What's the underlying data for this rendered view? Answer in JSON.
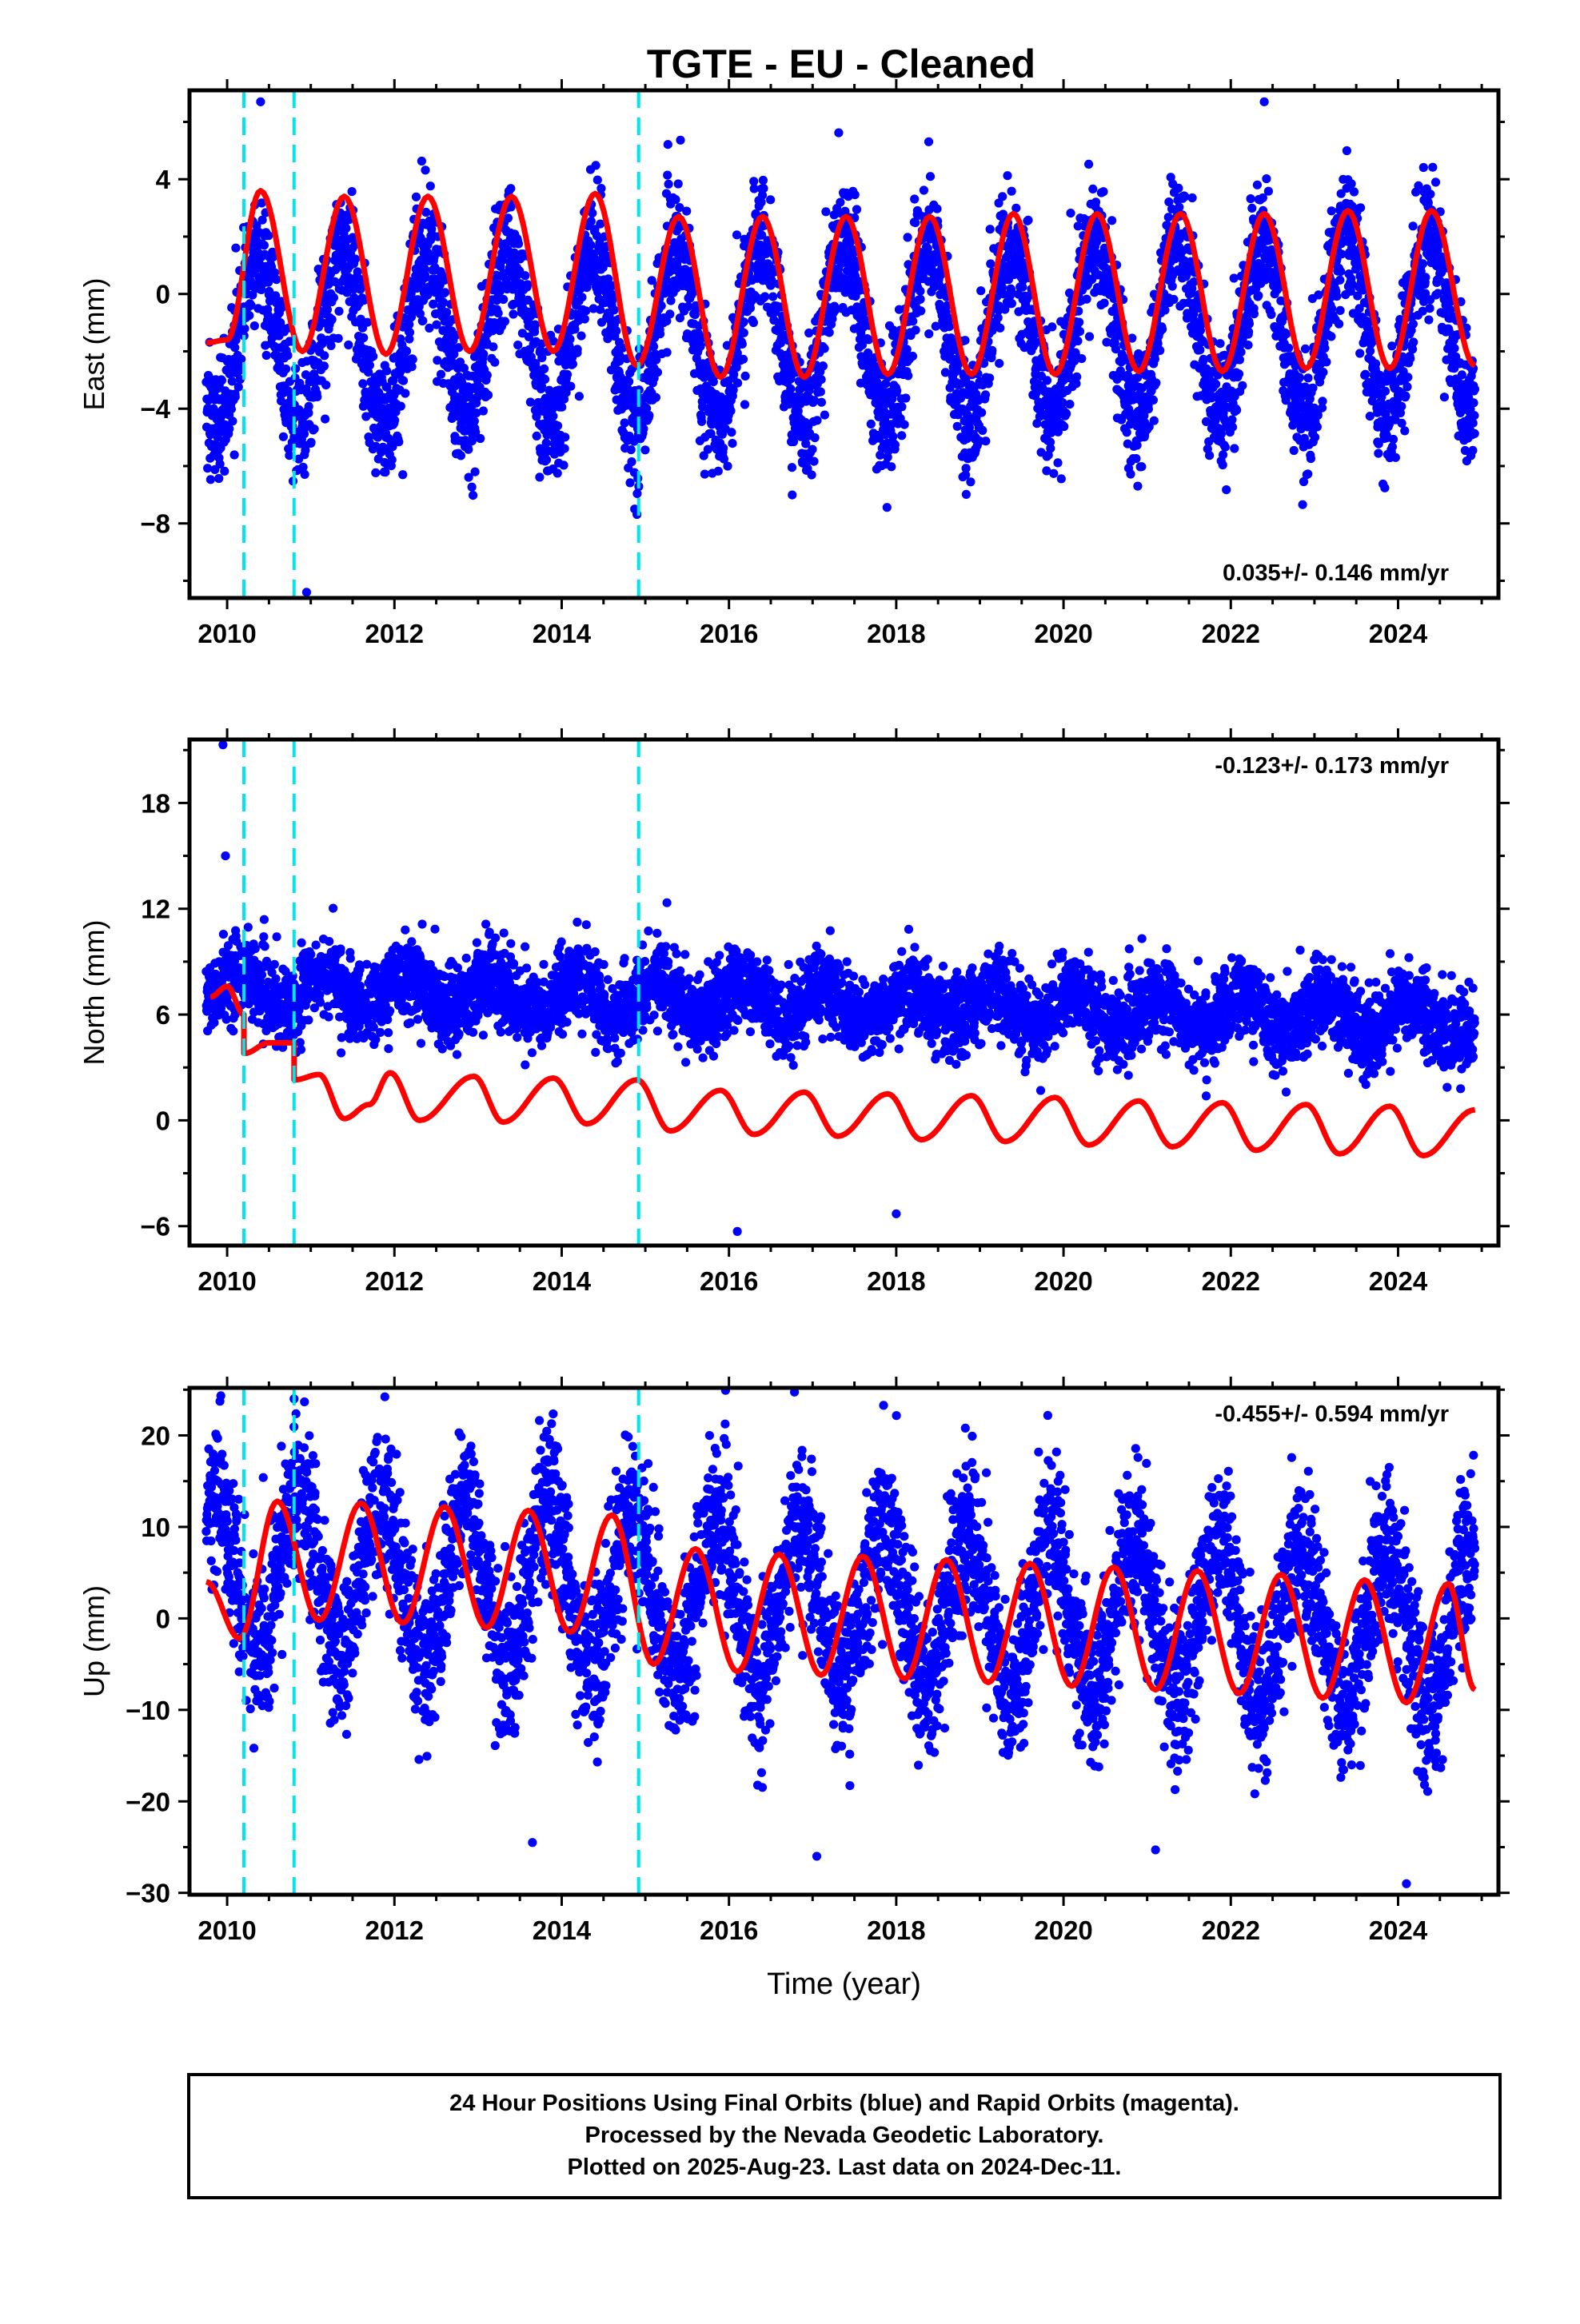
{
  "figure_title": "TGTE  - EU - Cleaned",
  "footer": {
    "line1": "24 Hour Positions Using Final Orbits (blue) and Rapid Orbits (magenta).",
    "line2": "Processed by the Nevada Geodetic Laboratory.",
    "line3": "Plotted on 2025-Aug-23. Last data on 2024-Dec-11."
  },
  "colors": {
    "data_points": "#0000ff",
    "model_fit": "#ff0000",
    "offset_lines": "#00e5ee",
    "frame": "#000000"
  },
  "chart_data": [
    {
      "type": "scatter",
      "panel": "east",
      "title": "",
      "xlabel": "",
      "ylabel": "East (mm)",
      "xlim": [
        2009.55,
        2025.2
      ],
      "ylim": [
        -10.6,
        7.1
      ],
      "xticks": [
        2010,
        2012,
        2014,
        2016,
        2018,
        2020,
        2022,
        2024
      ],
      "yticks": [
        -8,
        -4,
        0,
        4
      ],
      "rate_label": "0.035+/- 0.146 mm/yr",
      "offsets": [
        2010.2,
        2010.8,
        2014.92
      ],
      "series": [
        {
          "name": "",
          "kind": "points",
          "x_range": [
            2009.75,
            2024.92
          ],
          "mean": [
            -1.6,
            0.035
          ],
          "annual_amp": 3.0,
          "annual_phase": 0.12,
          "noise_sd": 1.1,
          "extremes": [
            [
              2010.95,
              -10.4
            ],
            [
              2010.4,
              6.7
            ],
            [
              2022.4,
              6.7
            ],
            [
              2012.1,
              -6.3
            ]
          ]
        },
        {
          "name": "",
          "kind": "model",
          "x_range": [
            2009.75,
            2024.92
          ],
          "x": [
            2009.75,
            2010.0,
            2010.4,
            2010.9,
            2011.4,
            2011.9,
            2012.4,
            2012.9,
            2013.4,
            2013.9,
            2014.4,
            2014.9,
            2015.4,
            2015.9,
            2016.4,
            2016.9,
            2017.4,
            2017.9,
            2018.4,
            2018.9,
            2019.4,
            2019.9,
            2020.4,
            2020.9,
            2021.4,
            2021.9,
            2022.4,
            2022.9,
            2023.4,
            2023.9,
            2024.4,
            2024.92
          ],
          "y": [
            -1.7,
            -1.6,
            3.6,
            -2.0,
            3.4,
            -2.1,
            3.4,
            -2.0,
            3.4,
            -2.0,
            3.5,
            -2.5,
            2.7,
            -2.9,
            2.7,
            -2.9,
            2.7,
            -2.8,
            2.7,
            -2.8,
            2.8,
            -2.8,
            2.8,
            -2.7,
            2.8,
            -2.7,
            2.8,
            -2.6,
            2.9,
            -2.6,
            2.9,
            -2.5
          ]
        }
      ]
    },
    {
      "type": "scatter",
      "panel": "north",
      "title": "",
      "xlabel": "",
      "ylabel": "North (mm)",
      "xlim": [
        2009.55,
        2025.2
      ],
      "ylim": [
        -7.1,
        21.6
      ],
      "xticks": [
        2010,
        2012,
        2014,
        2016,
        2018,
        2020,
        2022,
        2024
      ],
      "yticks": [
        -6,
        0,
        6,
        12,
        18
      ],
      "rate_label": "-0.123+/- 0.173 mm/yr",
      "offsets": [
        2010.2,
        2010.8,
        2014.92
      ],
      "series": [
        {
          "name": "",
          "kind": "points",
          "x_range": [
            2009.75,
            2024.92
          ],
          "mean": [
            7.5,
            -0.123
          ],
          "annual_amp": 1.0,
          "annual_phase": 0.9,
          "noise_sd": 1.1,
          "extremes": [
            [
              2009.95,
              21.3
            ],
            [
              2009.98,
              15.0
            ],
            [
              2016.1,
              -6.3
            ],
            [
              2018.0,
              -5.3
            ]
          ]
        },
        {
          "name": "",
          "kind": "model",
          "x_range": [
            2009.75,
            2024.92
          ],
          "x": [
            2009.8,
            2010.0,
            2010.2,
            2010.21,
            2010.5,
            2010.8,
            2010.81,
            2011.1,
            2011.4,
            2011.7,
            2011.95,
            2012.3,
            2012.95,
            2013.3,
            2013.9,
            2014.3,
            2014.9,
            2015.3,
            2015.9,
            2016.3,
            2016.9,
            2017.3,
            2017.9,
            2018.3,
            2018.9,
            2019.3,
            2019.9,
            2020.3,
            2020.9,
            2021.3,
            2021.9,
            2022.3,
            2022.9,
            2023.3,
            2023.9,
            2024.3,
            2024.92
          ],
          "y": [
            7.0,
            7.6,
            6.0,
            3.8,
            4.4,
            4.4,
            2.3,
            2.6,
            0.1,
            0.9,
            2.7,
            0.0,
            2.5,
            -0.1,
            2.4,
            -0.2,
            2.3,
            -0.6,
            1.7,
            -0.8,
            1.6,
            -0.9,
            1.5,
            -1.1,
            1.4,
            -1.2,
            1.3,
            -1.4,
            1.1,
            -1.5,
            1.0,
            -1.7,
            0.9,
            -1.9,
            0.8,
            -2.0,
            0.6
          ]
        }
      ]
    },
    {
      "type": "scatter",
      "panel": "up",
      "title": "",
      "xlabel": "Time (year)",
      "ylabel": "Up (mm)",
      "xlim": [
        2009.55,
        2025.2
      ],
      "ylim": [
        -30.2,
        25.2
      ],
      "xticks": [
        2010,
        2012,
        2014,
        2016,
        2018,
        2020,
        2022,
        2024
      ],
      "yticks": [
        -30,
        -20,
        -10,
        0,
        10,
        20
      ],
      "rate_label": "-0.455+/- 0.594 mm/yr",
      "offsets": [
        2010.2,
        2010.8,
        2014.92
      ],
      "series": [
        {
          "name": "",
          "kind": "points",
          "x_range": [
            2009.75,
            2024.92
          ],
          "mean": [
            5.0,
            -0.455
          ],
          "annual_amp": 8.5,
          "annual_phase": 0.6,
          "noise_sd": 4.2,
          "extremes": [
            [
              2010.8,
              24.0
            ],
            [
              2017.05,
              -26.0
            ],
            [
              2024.1,
              -29.0
            ],
            [
              2013.65,
              -24.5
            ],
            [
              2021.1,
              -25.3
            ]
          ]
        },
        {
          "name": "",
          "kind": "model",
          "x_range": [
            2009.75,
            2024.92
          ],
          "x": [
            2009.75,
            2010.15,
            2010.6,
            2011.1,
            2011.6,
            2012.1,
            2012.6,
            2013.1,
            2013.6,
            2014.1,
            2014.6,
            2015.1,
            2015.6,
            2016.1,
            2016.6,
            2017.1,
            2017.6,
            2018.1,
            2018.6,
            2019.1,
            2019.6,
            2020.1,
            2020.6,
            2021.1,
            2021.6,
            2022.1,
            2022.6,
            2023.1,
            2023.6,
            2024.1,
            2024.6,
            2024.92
          ],
          "y": [
            4.0,
            -2.2,
            12.8,
            -0.2,
            12.6,
            -0.5,
            12.2,
            -1.0,
            11.8,
            -1.5,
            11.3,
            -5.0,
            7.6,
            -5.8,
            7.0,
            -6.2,
            6.8,
            -6.6,
            6.4,
            -7.0,
            6.0,
            -7.4,
            5.6,
            -7.8,
            5.2,
            -8.2,
            4.8,
            -8.7,
            4.2,
            -9.2,
            3.8,
            -7.8
          ]
        }
      ]
    }
  ]
}
